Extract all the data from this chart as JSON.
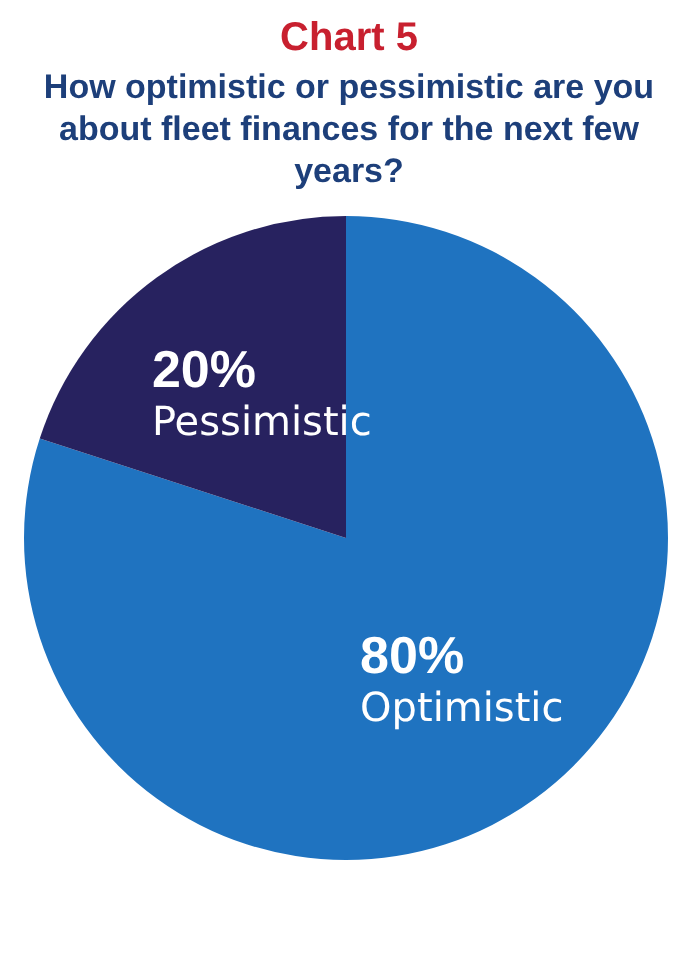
{
  "chart_data": {
    "type": "pie",
    "title": "Chart 5",
    "subtitle": "How optimistic or pessimistic are you about fleet finances for the next few years?",
    "categories": [
      "Optimistic",
      "Pessimistic"
    ],
    "values": [
      80,
      20
    ],
    "colors": [
      "#1f73c0",
      "#27225f"
    ],
    "value_labels": [
      "80%",
      "20%"
    ],
    "legend": false
  }
}
